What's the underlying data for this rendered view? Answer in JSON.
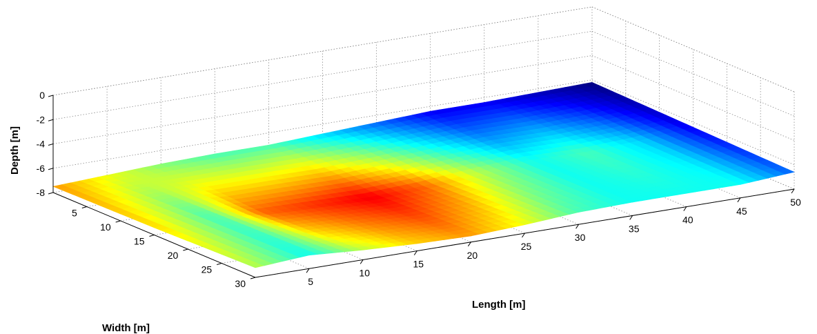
{
  "chart_data": {
    "type": "surface",
    "colormap": "jet",
    "xlabel": "Length [m]",
    "ylabel": "Width [m]",
    "zlabel": "Depth [m]",
    "x_ticks": [
      5,
      10,
      15,
      20,
      25,
      30,
      35,
      40,
      45,
      50
    ],
    "y_ticks": [
      5,
      10,
      15,
      20,
      25,
      30
    ],
    "z_ticks": [
      0,
      -2,
      -4,
      -6,
      -8
    ],
    "xlim": [
      0,
      50
    ],
    "ylim": [
      0,
      30
    ],
    "zlim": [
      -8,
      0
    ],
    "grid": true,
    "color_range": [
      -8,
      -6.2
    ],
    "depth_field": [
      [
        0,
        0,
        -7.5
      ],
      [
        0,
        15,
        -7.4
      ],
      [
        0,
        30,
        -7.2
      ],
      [
        5,
        0,
        -7.3
      ],
      [
        5,
        15,
        -7.0
      ],
      [
        5,
        30,
        -6.9
      ],
      [
        10,
        0,
        -7.1
      ],
      [
        10,
        15,
        -7.6
      ],
      [
        10,
        30,
        -7.2
      ],
      [
        15,
        0,
        -7.0
      ],
      [
        15,
        15,
        -7.7
      ],
      [
        15,
        30,
        -7.4
      ],
      [
        20,
        0,
        -7.0
      ],
      [
        20,
        15,
        -7.8
      ],
      [
        20,
        30,
        -7.5
      ],
      [
        25,
        0,
        -6.8
      ],
      [
        25,
        15,
        -7.6
      ],
      [
        25,
        30,
        -7.3
      ],
      [
        30,
        0,
        -6.6
      ],
      [
        30,
        15,
        -7.2
      ],
      [
        30,
        30,
        -7.0
      ],
      [
        35,
        0,
        -6.4
      ],
      [
        35,
        15,
        -6.9
      ],
      [
        35,
        30,
        -6.9
      ],
      [
        40,
        0,
        -6.4
      ],
      [
        40,
        15,
        -7.0
      ],
      [
        40,
        30,
        -6.9
      ],
      [
        45,
        0,
        -6.3
      ],
      [
        45,
        15,
        -6.8
      ],
      [
        45,
        30,
        -6.9
      ],
      [
        50,
        0,
        -6.2
      ],
      [
        50,
        15,
        -6.4
      ],
      [
        50,
        30,
        -6.6
      ]
    ]
  }
}
